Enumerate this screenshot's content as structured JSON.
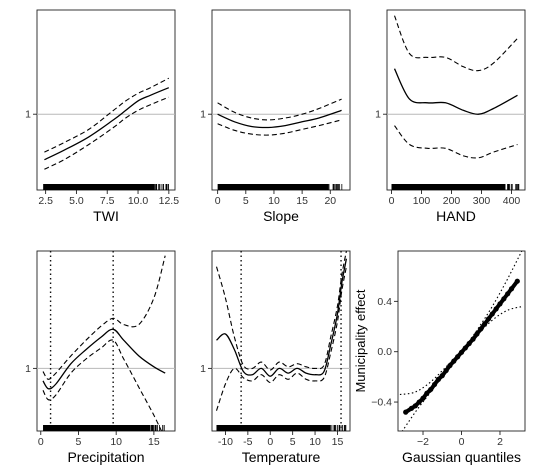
{
  "chart_data": [
    {
      "type": "line",
      "id": "twi",
      "xlabel": "TWI",
      "ylabel": "",
      "xlim": [
        1.8,
        13.0
      ],
      "ylim": [
        0.6,
        1.55
      ],
      "reference_y": 1,
      "xticks": [
        2.5,
        5.0,
        7.5,
        10.0,
        12.5
      ],
      "xtick_labels": [
        "2.5",
        "5.0",
        "7.5",
        "10.0",
        "12.5"
      ],
      "yticks": [
        1
      ],
      "ytick_labels": [
        "1"
      ],
      "rug_range": [
        2.3,
        12.6
      ],
      "vlines": [],
      "series": [
        {
          "style": "solid",
          "x": [
            2.4,
            4,
            6,
            8,
            9,
            10,
            11,
            12.5
          ],
          "y": [
            0.76,
            0.81,
            0.88,
            0.97,
            1.02,
            1.07,
            1.1,
            1.14
          ]
        },
        {
          "style": "dashed",
          "x": [
            2.4,
            4,
            6,
            8,
            9,
            10,
            11,
            12.5
          ],
          "y": [
            0.8,
            0.85,
            0.92,
            1.02,
            1.07,
            1.11,
            1.14,
            1.19
          ]
        },
        {
          "style": "dashed",
          "x": [
            2.4,
            4,
            6,
            8,
            9,
            10,
            11,
            12.5
          ],
          "y": [
            0.71,
            0.76,
            0.84,
            0.93,
            0.98,
            1.02,
            1.05,
            1.09
          ]
        }
      ]
    },
    {
      "type": "line",
      "id": "slope",
      "xlabel": "Slope",
      "ylabel": "",
      "xlim": [
        -1.0,
        23.5
      ],
      "ylim": [
        0.6,
        1.55
      ],
      "reference_y": 1,
      "xticks": [
        0,
        5,
        10,
        15,
        20
      ],
      "xtick_labels": [
        "0",
        "5",
        "10",
        "15",
        "20"
      ],
      "yticks": [
        1
      ],
      "ytick_labels": [
        "1"
      ],
      "rug_range": [
        0,
        22.3
      ],
      "vlines": [],
      "series": [
        {
          "style": "solid",
          "x": [
            0,
            3,
            6,
            9,
            12,
            15,
            18,
            22
          ],
          "y": [
            1.0,
            0.96,
            0.935,
            0.93,
            0.94,
            0.96,
            0.98,
            1.02
          ]
        },
        {
          "style": "dashed",
          "x": [
            0,
            3,
            6,
            9,
            12,
            15,
            18,
            22
          ],
          "y": [
            1.06,
            1.01,
            0.98,
            0.97,
            0.98,
            1.0,
            1.03,
            1.08
          ]
        },
        {
          "style": "dashed",
          "x": [
            0,
            3,
            6,
            9,
            12,
            15,
            18,
            22
          ],
          "y": [
            0.95,
            0.915,
            0.895,
            0.89,
            0.9,
            0.92,
            0.94,
            0.97
          ]
        }
      ]
    },
    {
      "type": "line",
      "id": "hand",
      "xlabel": "HAND",
      "ylabel": "",
      "xlim": [
        -15,
        445
      ],
      "ylim": [
        0.6,
        1.55
      ],
      "reference_y": 1,
      "xticks": [
        0,
        100,
        200,
        300,
        400
      ],
      "xtick_labels": [
        "0",
        "100",
        "200",
        "300",
        "400"
      ],
      "yticks": [
        1
      ],
      "ytick_labels": [
        "1"
      ],
      "rug_range": [
        0,
        430
      ],
      "vlines": [],
      "series": [
        {
          "style": "solid",
          "x": [
            10,
            60,
            120,
            180,
            240,
            290,
            340,
            420
          ],
          "y": [
            1.24,
            1.08,
            1.06,
            1.06,
            1.02,
            1.0,
            1.03,
            1.1
          ]
        },
        {
          "style": "dashed",
          "x": [
            10,
            60,
            120,
            180,
            240,
            290,
            340,
            420
          ],
          "y": [
            1.52,
            1.32,
            1.3,
            1.3,
            1.25,
            1.23,
            1.27,
            1.4
          ]
        },
        {
          "style": "dashed",
          "x": [
            10,
            60,
            120,
            180,
            240,
            290,
            340,
            420
          ],
          "y": [
            0.94,
            0.84,
            0.82,
            0.82,
            0.78,
            0.77,
            0.8,
            0.84
          ]
        }
      ]
    },
    {
      "type": "line",
      "id": "precipitation",
      "xlabel": "Precipitation",
      "ylabel": "",
      "xlim": [
        -0.5,
        17.8
      ],
      "ylim": [
        0.6,
        1.75
      ],
      "reference_y": 1,
      "xticks": [
        0,
        5,
        10,
        15
      ],
      "xtick_labels": [
        "0",
        "5",
        "10",
        "15"
      ],
      "yticks": [
        1
      ],
      "ytick_labels": [
        "1"
      ],
      "rug_range": [
        0.3,
        16.5
      ],
      "vlines": [
        1.3,
        9.6
      ],
      "series": [
        {
          "style": "solid",
          "x": [
            0.3,
            1,
            2,
            4,
            6,
            8,
            9.6,
            11,
            13,
            15,
            16.5
          ],
          "y": [
            0.92,
            0.87,
            0.9,
            1.03,
            1.12,
            1.2,
            1.25,
            1.18,
            1.08,
            1.01,
            0.97
          ]
        },
        {
          "style": "dashed",
          "x": [
            0.3,
            1,
            2,
            4,
            6,
            8,
            9.6,
            11,
            13,
            15,
            16.5
          ],
          "y": [
            0.98,
            0.93,
            0.97,
            1.08,
            1.18,
            1.27,
            1.32,
            1.28,
            1.28,
            1.45,
            1.72
          ]
        },
        {
          "style": "dashed",
          "x": [
            0.3,
            1,
            2,
            4,
            6,
            8,
            9.6,
            11,
            13,
            15,
            16.5
          ],
          "y": [
            0.86,
            0.8,
            0.83,
            0.97,
            1.06,
            1.13,
            1.18,
            1.06,
            0.88,
            0.7,
            0.55
          ]
        }
      ]
    },
    {
      "type": "line",
      "id": "temperature",
      "xlabel": "Temperature",
      "ylabel": "",
      "xlim": [
        -13,
        17.8
      ],
      "ylim": [
        0.6,
        1.75
      ],
      "reference_y": 1,
      "xticks": [
        -10,
        -5,
        0,
        5,
        10,
        15
      ],
      "xtick_labels": [
        "-10",
        "-5",
        "0",
        "5",
        "10",
        "15"
      ],
      "yticks": [
        1
      ],
      "ytick_labels": [
        "1"
      ],
      "rug_range": [
        -12,
        17
      ],
      "vlines": [
        -6.5,
        15.8
      ],
      "series": [
        {
          "style": "solid",
          "x": [
            -12,
            -10,
            -8,
            -6,
            -4,
            -2,
            0,
            2,
            4,
            6,
            8,
            10,
            12,
            13.5,
            15,
            16,
            17
          ],
          "y": [
            1.18,
            1.22,
            1.12,
            0.98,
            0.96,
            1.0,
            0.95,
            1.0,
            0.97,
            1.0,
            0.97,
            0.96,
            0.98,
            1.15,
            1.35,
            1.55,
            1.7
          ]
        },
        {
          "style": "dashed",
          "x": [
            -12,
            -10,
            -8,
            -6,
            -4,
            -2,
            0,
            2,
            4,
            6,
            8,
            10,
            12,
            13.5,
            15,
            16,
            17
          ],
          "y": [
            1.65,
            1.45,
            1.2,
            1.02,
            1.0,
            1.04,
            0.99,
            1.04,
            1.01,
            1.03,
            1.01,
            1.0,
            1.02,
            1.2,
            1.4,
            1.6,
            1.75
          ]
        },
        {
          "style": "dashed",
          "x": [
            -12,
            -10,
            -8,
            -6,
            -4,
            -2,
            0,
            2,
            4,
            6,
            8,
            10,
            12,
            13.5,
            15,
            16,
            17
          ],
          "y": [
            0.73,
            0.9,
            1.0,
            0.94,
            0.92,
            0.96,
            0.91,
            0.96,
            0.93,
            0.97,
            0.93,
            0.92,
            0.94,
            1.1,
            1.3,
            1.5,
            1.65
          ]
        }
      ]
    },
    {
      "type": "scatter",
      "id": "qq",
      "xlabel": "Gaussian quantiles",
      "ylabel": "Municipality effect",
      "xlim": [
        -3.3,
        3.3
      ],
      "ylim": [
        -0.63,
        0.8
      ],
      "reference_y": null,
      "xticks": [
        -2,
        0,
        2
      ],
      "xtick_labels": [
        "−2",
        "0",
        "2"
      ],
      "yticks": [
        -0.4,
        0.0,
        0.4
      ],
      "ytick_labels": [
        "−0.4",
        "0.0",
        "0.4"
      ],
      "rug_range": null,
      "vlines": [],
      "points": {
        "x": [
          -2.9,
          -2.6,
          -2.4,
          -2.2,
          -2.0,
          -1.8,
          -1.6,
          -1.4,
          -1.2,
          -1.0,
          -0.8,
          -0.6,
          -0.4,
          -0.2,
          0.0,
          0.2,
          0.4,
          0.6,
          0.8,
          1.0,
          1.2,
          1.4,
          1.6,
          1.8,
          2.0,
          2.2,
          2.4,
          2.6,
          2.9
        ],
        "y": [
          -0.48,
          -0.45,
          -0.43,
          -0.4,
          -0.37,
          -0.33,
          -0.3,
          -0.26,
          -0.22,
          -0.19,
          -0.15,
          -0.11,
          -0.075,
          -0.04,
          -0.005,
          0.03,
          0.065,
          0.1,
          0.14,
          0.18,
          0.22,
          0.26,
          0.3,
          0.34,
          0.38,
          0.42,
          0.46,
          0.5,
          0.56
        ]
      },
      "series": [
        {
          "style": "dotted",
          "x": [
            -3.2,
            -2.4,
            -1.6,
            -0.8,
            0,
            0.8,
            1.6,
            2.4,
            3.2
          ],
          "y": [
            -0.66,
            -0.48,
            -0.32,
            -0.16,
            0.0,
            0.17,
            0.36,
            0.58,
            0.82
          ]
        },
        {
          "style": "dotted",
          "x": [
            -3.2,
            -2.4,
            -1.6,
            -0.8,
            0,
            0.8,
            1.6,
            2.4,
            3.2
          ],
          "y": [
            -0.34,
            -0.32,
            -0.24,
            -0.12,
            0.0,
            0.13,
            0.25,
            0.33,
            0.36
          ]
        }
      ]
    }
  ]
}
